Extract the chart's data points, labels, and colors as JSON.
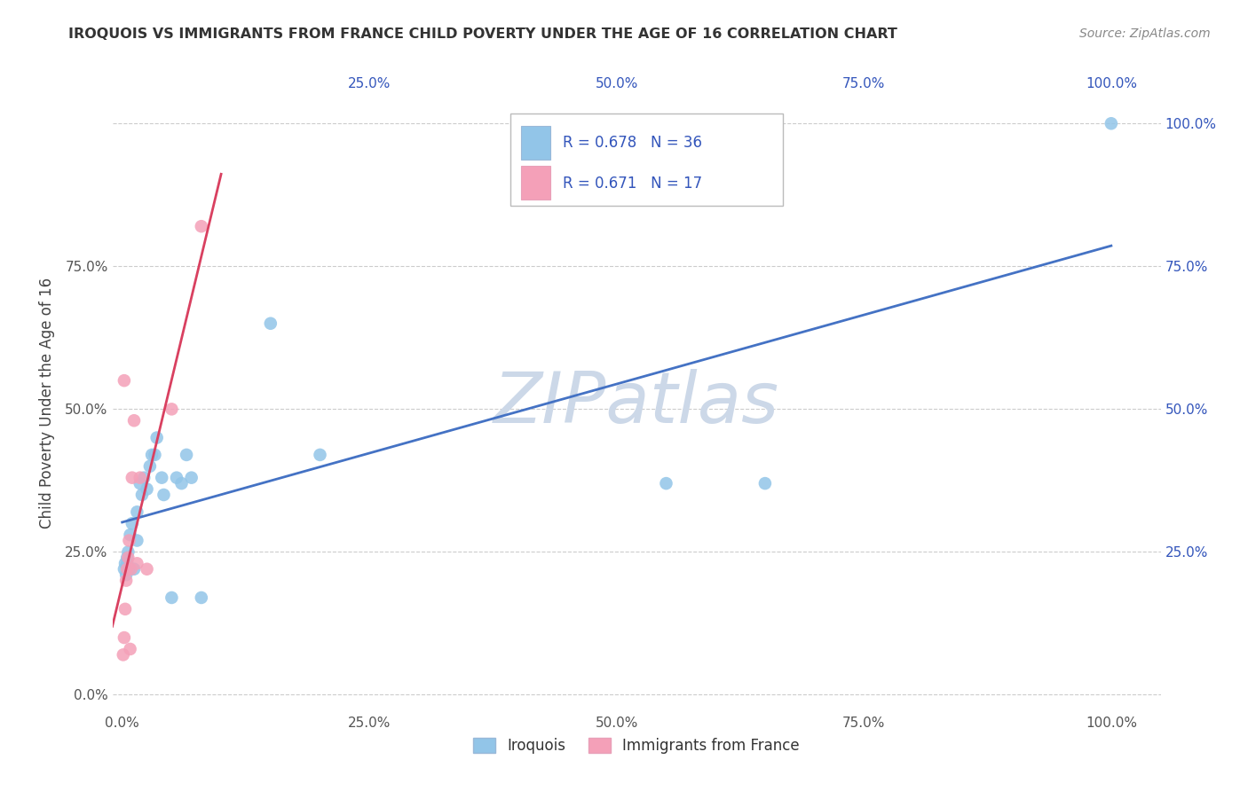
{
  "title": "IROQUOIS VS IMMIGRANTS FROM FRANCE CHILD POVERTY UNDER THE AGE OF 16 CORRELATION CHART",
  "source": "Source: ZipAtlas.com",
  "ylabel": "Child Poverty Under the Age of 16",
  "watermark": "ZIPatlas",
  "iroquois_x": [
    0.2,
    0.3,
    0.4,
    0.5,
    0.5,
    0.6,
    0.7,
    0.8,
    1.0,
    1.2,
    1.5,
    1.5,
    1.8,
    2.0,
    2.2,
    2.5,
    2.8,
    3.0,
    3.3,
    3.5,
    4.0,
    4.2,
    5.0,
    5.5,
    6.0,
    6.5,
    7.0,
    8.0,
    15.0,
    20.0,
    55.0,
    65.0,
    100.0
  ],
  "iroquois_y": [
    22.0,
    23.0,
    21.0,
    24.0,
    23.0,
    25.0,
    22.0,
    28.0,
    30.0,
    22.0,
    27.0,
    32.0,
    37.0,
    35.0,
    38.0,
    36.0,
    40.0,
    42.0,
    42.0,
    45.0,
    38.0,
    35.0,
    17.0,
    38.0,
    37.0,
    42.0,
    38.0,
    17.0,
    65.0,
    42.0,
    37.0,
    37.0,
    100.0
  ],
  "france_x": [
    0.1,
    0.2,
    0.3,
    0.4,
    0.5,
    0.6,
    0.7,
    0.8,
    0.9,
    1.0,
    1.2,
    1.5,
    1.8,
    2.5,
    5.0,
    8.0
  ],
  "france_y": [
    7.0,
    10.0,
    15.0,
    20.0,
    22.0,
    24.0,
    27.0,
    8.0,
    22.0,
    38.0,
    48.0,
    23.0,
    38.0,
    22.0,
    50.0,
    82.0
  ],
  "france_outlier_x": [
    0.2
  ],
  "france_outlier_y": [
    55.0
  ],
  "iroquois_color": "#92C5E8",
  "france_color": "#F4A0B8",
  "iroquois_line_color": "#4472C4",
  "france_line_color": "#D94060",
  "background_color": "#ffffff",
  "grid_color": "#cccccc",
  "title_color": "#333333",
  "source_color": "#888888",
  "watermark_color": "#ccd8e8",
  "legend_r_color": "#3355bb",
  "xlim": [
    -1.0,
    105.0
  ],
  "ylim": [
    -3.0,
    105.0
  ],
  "xticks": [
    0.0,
    25.0,
    50.0,
    75.0,
    100.0
  ],
  "yticks": [
    0.0,
    25.0,
    50.0,
    75.0,
    100.0
  ],
  "left_tick_labels": [
    "0.0%",
    "25.0%",
    "50.0%",
    "75.0%",
    ""
  ],
  "right_tick_labels": [
    "",
    "25.0%",
    "50.0%",
    "75.0%",
    "100.0%"
  ],
  "bottom_tick_labels": [
    "0.0%",
    "25.0%",
    "50.0%",
    "75.0%",
    "100.0%"
  ],
  "top_tick_labels": [
    "",
    "25.0%",
    "50.0%",
    "75.0%",
    "100.0%"
  ],
  "bottom_legend_labels": [
    "Iroquois",
    "Immigrants from France"
  ]
}
